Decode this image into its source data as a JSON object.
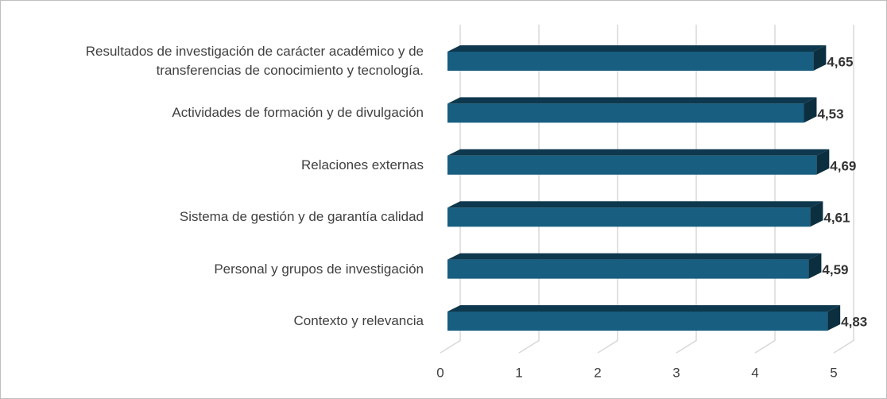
{
  "chart_data": {
    "type": "bar",
    "orientation": "horizontal",
    "categories": [
      "Resultados de investigación de carácter académico y de transferencias de conocimiento y tecnología.",
      "Actividades de formación y de divulgación",
      "Relaciones externas",
      "Sistema de gestión y de garantía calidad",
      "Personal y grupos de investigación",
      "Contexto y relevancia"
    ],
    "values": [
      4.65,
      4.53,
      4.69,
      4.61,
      4.59,
      4.83
    ],
    "value_labels": [
      "4,65",
      "4,53",
      "4,69",
      "4,61",
      "4,59",
      "4,83"
    ],
    "color": "#175e80",
    "xlim": [
      0,
      5
    ],
    "xticks": [
      0,
      1,
      2,
      3,
      4,
      5
    ],
    "grid": true
  }
}
